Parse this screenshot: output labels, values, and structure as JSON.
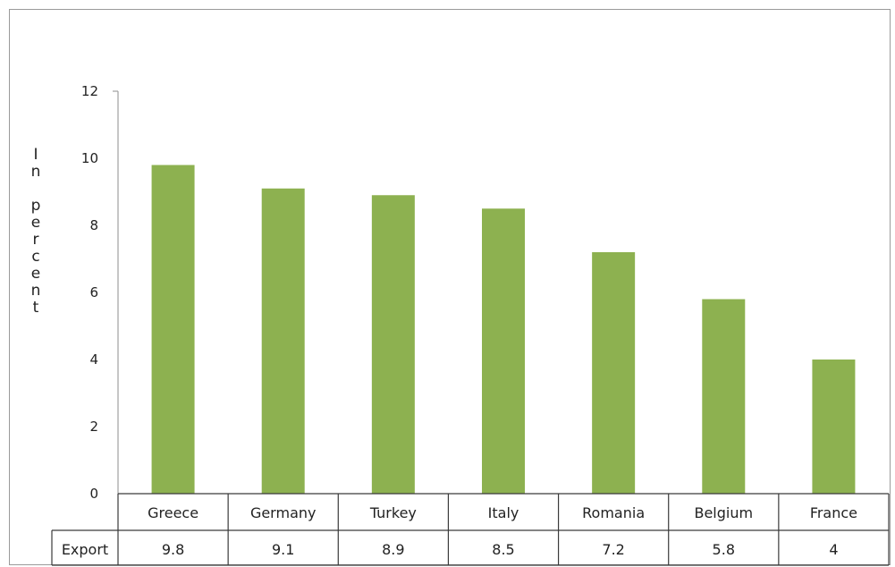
{
  "chart_data": {
    "type": "bar",
    "categories": [
      "Greece",
      "Germany",
      "Turkey",
      "Italy",
      "Romania",
      "Belgium",
      "France"
    ],
    "series": [
      {
        "name": "Export",
        "values": [
          9.8,
          9.1,
          8.9,
          8.5,
          7.2,
          5.8,
          4
        ]
      }
    ],
    "value_labels": [
      "9.8",
      "9.1",
      "8.9",
      "8.5",
      "7.2",
      "5.8",
      "4"
    ],
    "ylabel": "In percent",
    "ylim": [
      0,
      12
    ],
    "yticks": [
      0,
      2,
      4,
      6,
      8,
      10,
      12
    ],
    "grid": false,
    "legend": "data-table-below",
    "bar_color": "#8db150",
    "axis_color": "#a0a0a0"
  }
}
